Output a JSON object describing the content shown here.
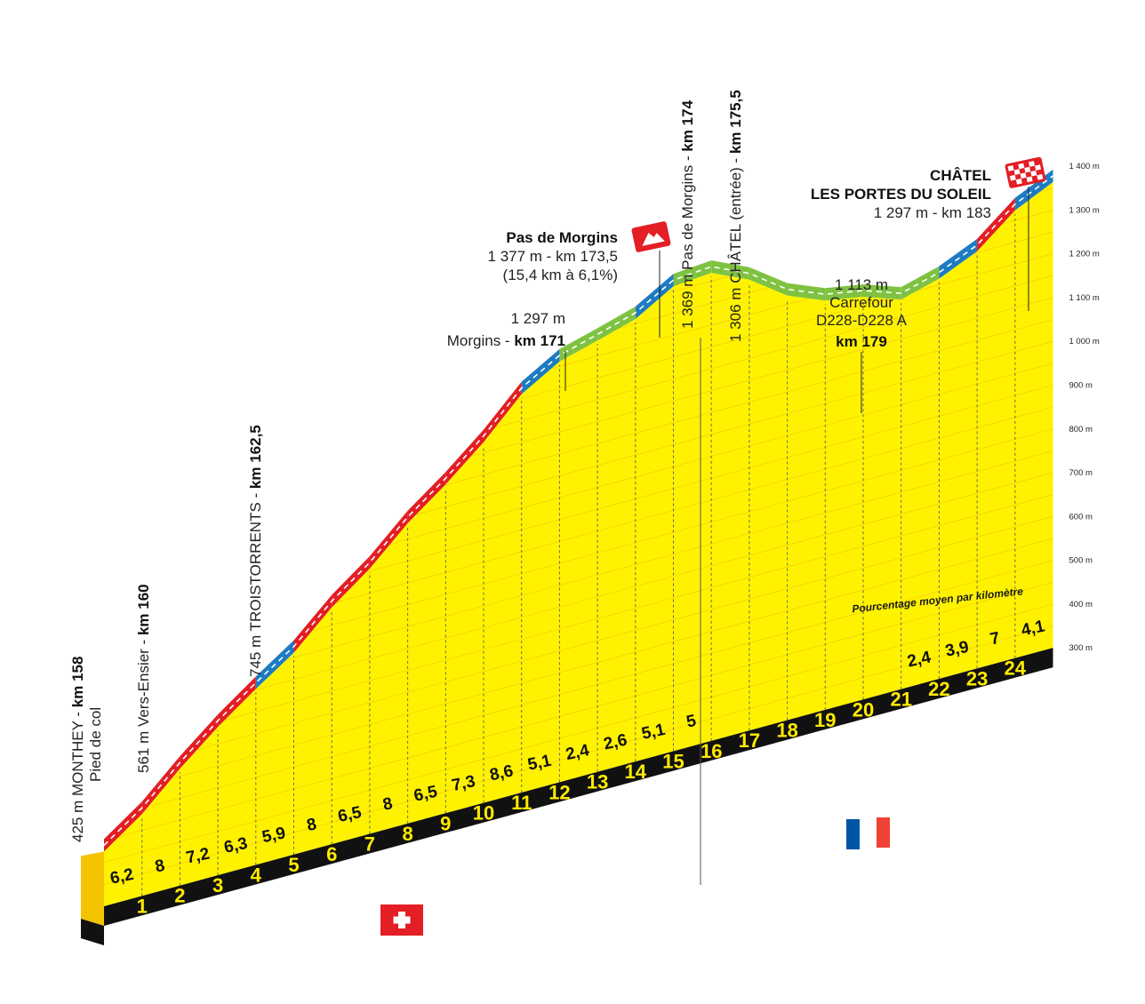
{
  "chart_data": {
    "type": "area",
    "title": "",
    "xlabel": "",
    "ylabel": "",
    "ylim": [
      300,
      1400
    ],
    "y_ticks": [
      "300 m",
      "400 m",
      "500 m",
      "600 m",
      "700 m",
      "800 m",
      "900 m",
      "1 000 m",
      "1 100 m",
      "1 200 m",
      "1 300 m",
      "1 400 m"
    ],
    "grid": true,
    "km_markers": [
      "1",
      "2",
      "3",
      "4",
      "5",
      "6",
      "7",
      "8",
      "9",
      "10",
      "11",
      "12",
      "13",
      "14",
      "15",
      "16",
      "17",
      "18",
      "19",
      "20",
      "21",
      "22",
      "23",
      "24"
    ],
    "profile": {
      "x_km": [
        0,
        1,
        2,
        3,
        4,
        5,
        6,
        7,
        8,
        9,
        10,
        11,
        12,
        13,
        14,
        15,
        16,
        17,
        18,
        19,
        20,
        21,
        22,
        23,
        24,
        25
      ],
      "elevation_m": [
        425,
        487,
        567,
        639,
        702,
        761,
        841,
        906,
        986,
        1051,
        1124,
        1210,
        1261,
        1285,
        1311,
        1362,
        1369,
        1330,
        1270,
        1235,
        1220,
        1190,
        1214,
        1253,
        1323,
        1364
      ]
    },
    "gradients": {
      "part1_km_labels": [
        "6,2",
        "8",
        "7,2",
        "6,3",
        "5,9",
        "8",
        "6,5",
        "8",
        "6,5",
        "7,3",
        "8,6",
        "5,1",
        "2,4",
        "2,6",
        "5,1",
        "5"
      ],
      "part2_km_labels": [
        "2,4",
        "3,9",
        "7",
        "4,1"
      ],
      "part2_caption": "Pourcentage moyen par kilomètre"
    },
    "annotations": {
      "monthey": {
        "line1": "425 m MONTHEY - ",
        "km": "km 158",
        "line2": "Pied de col"
      },
      "vers_ensier": {
        "line1": "561 m Vers-Ensier - ",
        "km": "km 160"
      },
      "troistorrents": {
        "line1": "745 m TROISTORRENTS - ",
        "km": "km 162,5"
      },
      "morgins": {
        "alt": "1 297 m",
        "name": "Morgins - ",
        "km": "km 171"
      },
      "pas_de_morgins": {
        "name": "Pas de Morgins",
        "detail": "1 377 m - km 173,5",
        "climb": "(15,4 km à 6,1%)"
      },
      "pas_de_morgins_vertical": {
        "line1": "1 369 m Pas de Morgins - ",
        "km": "km 174"
      },
      "chatel_entree": {
        "line1": "1 306 m CHÂTEL (entrée) - ",
        "km": "km 175,5"
      },
      "carrefour": {
        "alt": "1 113 m",
        "name1": "Carrefour",
        "name2": "D228-D228 A",
        "km": "km 179"
      },
      "finish": {
        "name1": "CHÂTEL",
        "name2": "LES PORTES DU SOLEIL",
        "detail": "1 297 m - km 183"
      }
    },
    "colors": {
      "profile_fill": "#fff200",
      "base": "#111111",
      "steep": "#e31e24",
      "moderate": "#1d7bc2",
      "easy": "#7fc241",
      "flag_switzerland": "#e31e24",
      "flag_france_blue": "#0055a4",
      "flag_france_red": "#ef4135"
    }
  }
}
